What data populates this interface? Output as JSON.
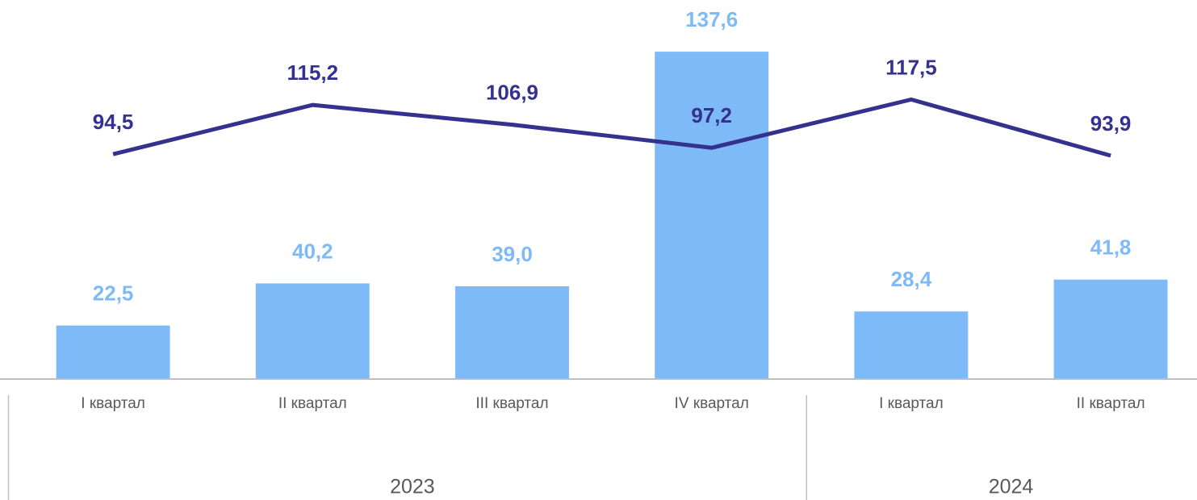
{
  "chart_data": {
    "type": "bar_line",
    "categories": [
      "I квартал",
      "II квартал",
      "III квартал",
      "IV квартал",
      "I квартал",
      "II квартал"
    ],
    "x_groups": [
      {
        "label": "2023",
        "count": 4
      },
      {
        "label": "2024",
        "count": 2
      }
    ],
    "series": [
      {
        "type": "bar",
        "color": "#7fbaf8",
        "label_color": "#7fbaf8",
        "values": [
          22.5,
          40.2,
          39.0,
          137.6,
          28.4,
          41.8
        ],
        "value_labels": [
          "22,5",
          "40,2",
          "39,0",
          "137,6",
          "28,4",
          "41,8"
        ]
      },
      {
        "type": "line",
        "color": "#35318f",
        "label_color": "#35318f",
        "values": [
          94.5,
          115.2,
          106.9,
          97.2,
          117.5,
          93.9
        ],
        "value_labels": [
          "94,5",
          "115,2",
          "106,9",
          "97,2",
          "117,5",
          "93,9"
        ]
      }
    ],
    "ylim": [
      0,
      150
    ]
  }
}
